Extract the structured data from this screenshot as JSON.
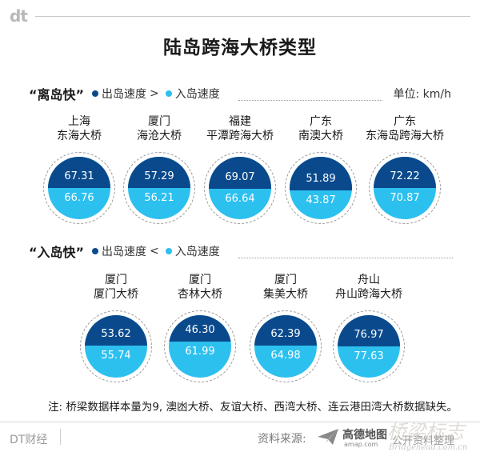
{
  "brand": {
    "logo": "dt",
    "footer_name": "DT财经"
  },
  "title": "陆岛跨海大桥类型",
  "colors": {
    "outbound": "#0a4a8c",
    "inbound": "#2cc0ef",
    "ring": "#9a9a9a"
  },
  "sections": [
    {
      "title": "“离岛快”",
      "legend_out": "出岛速度",
      "op": ">",
      "legend_in": "入岛速度",
      "unit": "单位: km/h"
    },
    {
      "title": "“入岛快”",
      "legend_out": "出岛速度",
      "op": "<",
      "legend_in": "入岛速度"
    }
  ],
  "chart_data": {
    "type": "proportional-circles",
    "title": "陆岛跨海大桥类型",
    "unit": "km/h",
    "series": [
      {
        "name": "出岛速度",
        "color": "#0a4a8c"
      },
      {
        "name": "入岛速度",
        "color": "#2cc0ef"
      }
    ],
    "groups": [
      {
        "name": "“离岛快”",
        "bridges": [
          {
            "city": "上海",
            "bridge": "东海大桥",
            "out": "67.31",
            "in": "66.76"
          },
          {
            "city": "厦门",
            "bridge": "海沧大桥",
            "out": "57.29",
            "in": "56.21"
          },
          {
            "city": "福建",
            "bridge": "平潭跨海大桥",
            "out": "69.07",
            "in": "66.64"
          },
          {
            "city": "广东",
            "bridge": "南澳大桥",
            "out": "51.89",
            "in": "43.87"
          },
          {
            "city": "广东",
            "bridge": "东海岛跨海大桥",
            "out": "72.22",
            "in": "70.87"
          }
        ]
      },
      {
        "name": "“入岛快”",
        "bridges": [
          {
            "city": "厦门",
            "bridge": "厦门大桥",
            "out": "53.62",
            "in": "55.74"
          },
          {
            "city": "厦门",
            "bridge": "杏林大桥",
            "out": "46.30",
            "in": "61.99"
          },
          {
            "city": "厦门",
            "bridge": "集美大桥",
            "out": "62.39",
            "in": "64.98"
          },
          {
            "city": "舟山",
            "bridge": "舟山跨海大桥",
            "out": "76.97",
            "in": "77.63"
          }
        ]
      }
    ]
  },
  "note": "注: 桥梁数据样本量为9, 澳凼大桥、友谊大桥、西湾大桥、连云港田湾大桥数据缺失。",
  "footer": {
    "source_label": "资料来源:",
    "amap_name": "高德地图",
    "amap_url": "amap.com",
    "amap_tail": "公开资料整理"
  },
  "watermark": {
    "text": "桥梁标志",
    "url": "Bridgehead.com.cn"
  }
}
